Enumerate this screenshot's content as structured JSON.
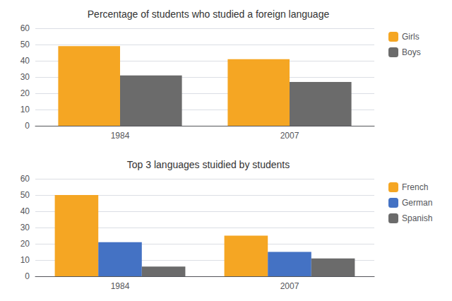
{
  "chart_data": [
    {
      "type": "bar",
      "title": "Percentage of students who studied a foreign language",
      "categories": [
        "1984",
        "2007"
      ],
      "series": [
        {
          "name": "Girls",
          "color": "#F5A623",
          "values": [
            49,
            41
          ]
        },
        {
          "name": "Boys",
          "color": "#6B6B6B",
          "values": [
            31,
            27
          ]
        }
      ],
      "ylim": [
        0,
        60
      ],
      "yticks": [
        0,
        10,
        20,
        30,
        40,
        50,
        60
      ],
      "grid": true,
      "legend": "right"
    },
    {
      "type": "bar",
      "title": "Top 3 languages stuidied by students",
      "categories": [
        "1984",
        "2007"
      ],
      "series": [
        {
          "name": "French",
          "color": "#F5A623",
          "values": [
            50,
            25
          ]
        },
        {
          "name": "German",
          "color": "#4472C4",
          "values": [
            21,
            15
          ]
        },
        {
          "name": "Spanish",
          "color": "#6B6B6B",
          "values": [
            6,
            11
          ]
        }
      ],
      "ylim": [
        0,
        60
      ],
      "yticks": [
        0,
        10,
        20,
        30,
        40,
        50,
        60
      ],
      "grid": true,
      "legend": "right"
    }
  ]
}
